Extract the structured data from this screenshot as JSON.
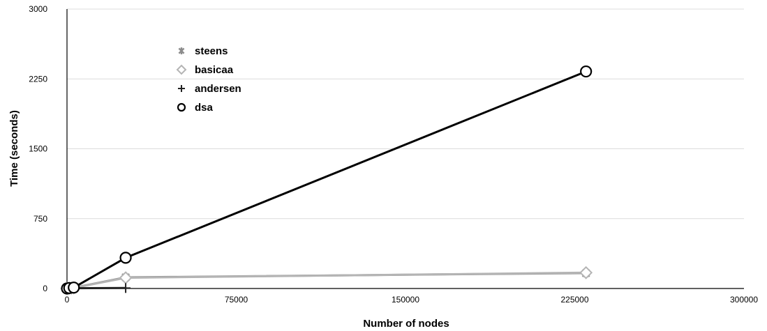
{
  "chart_data": {
    "type": "line",
    "xlabel": "Number of nodes",
    "ylabel": "Time (seconds)",
    "xlim": [
      0,
      300000
    ],
    "ylim": [
      0,
      3000
    ],
    "x_ticks": [
      "0",
      "75000",
      "150000",
      "225000",
      "300000"
    ],
    "y_ticks": [
      "0",
      "750",
      "1500",
      "2250",
      "3000"
    ],
    "grid": "horizontal",
    "legend_position": "upper-left",
    "series": [
      {
        "name": "steens",
        "color": "#8c8c8c",
        "marker": "asterisk",
        "points": [
          [
            0,
            0
          ],
          [
            1000,
            3
          ],
          [
            2000,
            6
          ],
          [
            3000,
            8
          ],
          [
            26000,
            120
          ],
          [
            230000,
            165
          ]
        ]
      },
      {
        "name": "basicaa",
        "color": "#b4b4b4",
        "marker": "diamond",
        "points": [
          [
            0,
            0
          ],
          [
            1000,
            2
          ],
          [
            2000,
            4
          ],
          [
            3000,
            6
          ],
          [
            26000,
            115
          ],
          [
            230000,
            170
          ]
        ]
      },
      {
        "name": "andersen",
        "color": "#222222",
        "marker": "plus",
        "points": [
          [
            0,
            0
          ],
          [
            1000,
            1
          ],
          [
            2000,
            2
          ],
          [
            3000,
            3
          ],
          [
            26000,
            5
          ]
        ]
      },
      {
        "name": "dsa",
        "color": "#000000",
        "marker": "circle",
        "points": [
          [
            0,
            0
          ],
          [
            1000,
            5
          ],
          [
            3000,
            10
          ],
          [
            26000,
            330
          ],
          [
            230000,
            2330
          ]
        ]
      }
    ]
  }
}
